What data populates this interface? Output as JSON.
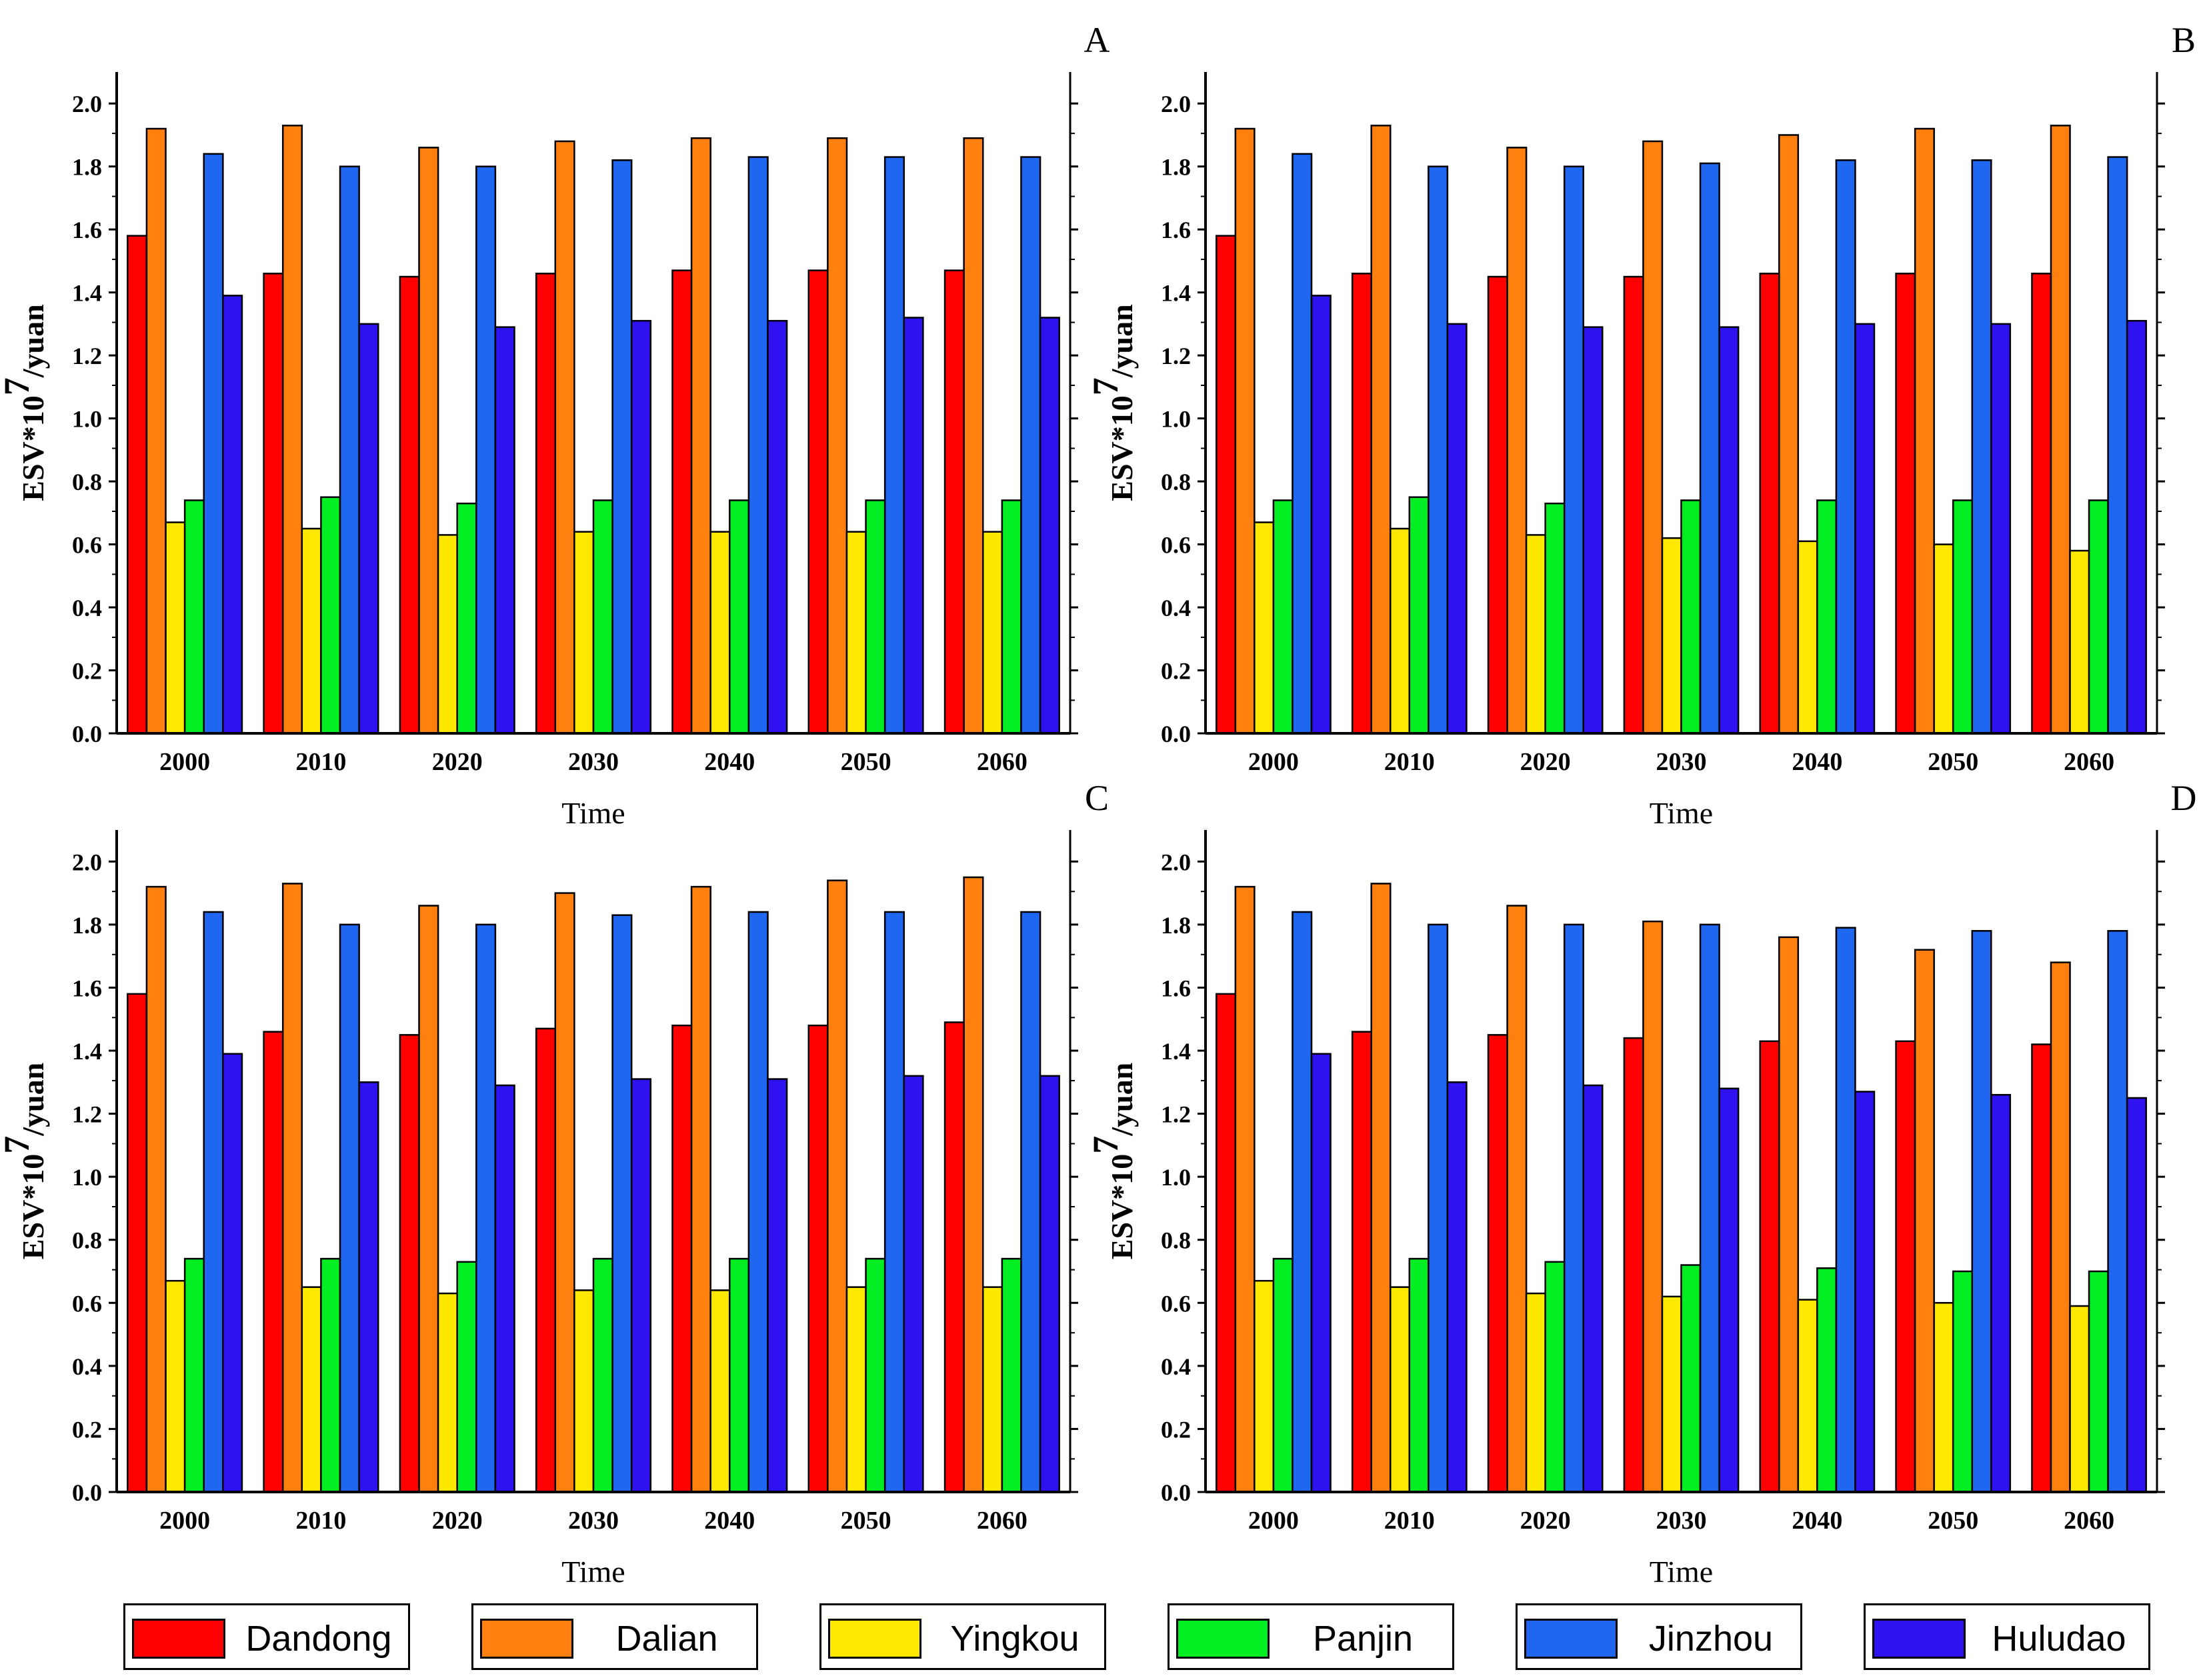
{
  "colors": {
    "Dandong": "#FF0000",
    "Dalian": "#FF7F0F",
    "Yingkou": "#FFE800",
    "Panjin": "#00EE22",
    "Jinzhou": "#1F66F0",
    "Huludao": "#2E12F0"
  },
  "legend": {
    "items": [
      {
        "label": "Dandong",
        "color_key": "Dandong"
      },
      {
        "label": "Dalian",
        "color_key": "Dalian"
      },
      {
        "label": "Yingkou",
        "color_key": "Yingkou"
      },
      {
        "label": "Panjin",
        "color_key": "Panjin"
      },
      {
        "label": "Jinzhou",
        "color_key": "Jinzhou"
      },
      {
        "label": "Huludao",
        "color_key": "Huludao"
      }
    ]
  },
  "chart_data": [
    {
      "type": "bar",
      "panel_label": "A",
      "xlabel": "Time",
      "ylabel_base": "ESV*10",
      "ylabel_exp": "7",
      "ylabel_unit": "/yuan",
      "ylim": [
        0,
        2.1
      ],
      "yticks": [
        "0.0",
        "0.2",
        "0.4",
        "0.6",
        "0.8",
        "1.0",
        "1.2",
        "1.4",
        "1.6",
        "1.8",
        "2.0"
      ],
      "categories": [
        "2000",
        "2010",
        "2020",
        "2030",
        "2040",
        "2050",
        "2060"
      ],
      "series": [
        {
          "name": "Dandong",
          "values": [
            1.58,
            1.46,
            1.45,
            1.46,
            1.47,
            1.47,
            1.47
          ]
        },
        {
          "name": "Dalian",
          "values": [
            1.92,
            1.93,
            1.86,
            1.88,
            1.89,
            1.89,
            1.89
          ]
        },
        {
          "name": "Yingkou",
          "values": [
            0.67,
            0.65,
            0.63,
            0.64,
            0.64,
            0.64,
            0.64
          ]
        },
        {
          "name": "Panjin",
          "values": [
            0.74,
            0.75,
            0.73,
            0.74,
            0.74,
            0.74,
            0.74
          ]
        },
        {
          "name": "Jinzhou",
          "values": [
            1.84,
            1.8,
            1.8,
            1.82,
            1.83,
            1.83,
            1.83
          ]
        },
        {
          "name": "Huludao",
          "values": [
            1.39,
            1.3,
            1.29,
            1.31,
            1.31,
            1.32,
            1.32
          ]
        }
      ]
    },
    {
      "type": "bar",
      "panel_label": "B",
      "xlabel": "Time",
      "ylabel_base": "ESV*10",
      "ylabel_exp": "7",
      "ylabel_unit": "/yuan",
      "ylim": [
        0,
        2.1
      ],
      "yticks": [
        "0.0",
        "0.2",
        "0.4",
        "0.6",
        "0.8",
        "1.0",
        "1.2",
        "1.4",
        "1.6",
        "1.8",
        "2.0"
      ],
      "categories": [
        "2000",
        "2010",
        "2020",
        "2030",
        "2040",
        "2050",
        "2060"
      ],
      "series": [
        {
          "name": "Dandong",
          "values": [
            1.58,
            1.46,
            1.45,
            1.45,
            1.46,
            1.46,
            1.46
          ]
        },
        {
          "name": "Dalian",
          "values": [
            1.92,
            1.93,
            1.86,
            1.88,
            1.9,
            1.92,
            1.93
          ]
        },
        {
          "name": "Yingkou",
          "values": [
            0.67,
            0.65,
            0.63,
            0.62,
            0.61,
            0.6,
            0.58
          ]
        },
        {
          "name": "Panjin",
          "values": [
            0.74,
            0.75,
            0.73,
            0.74,
            0.74,
            0.74,
            0.74
          ]
        },
        {
          "name": "Jinzhou",
          "values": [
            1.84,
            1.8,
            1.8,
            1.81,
            1.82,
            1.82,
            1.83
          ]
        },
        {
          "name": "Huludao",
          "values": [
            1.39,
            1.3,
            1.29,
            1.29,
            1.3,
            1.3,
            1.31
          ]
        }
      ]
    },
    {
      "type": "bar",
      "panel_label": "C",
      "xlabel": "Time",
      "ylabel_base": "ESV*10",
      "ylabel_exp": "7",
      "ylabel_unit": "/yuan",
      "ylim": [
        0,
        2.1
      ],
      "yticks": [
        "0.0",
        "0.2",
        "0.4",
        "0.6",
        "0.8",
        "1.0",
        "1.2",
        "1.4",
        "1.6",
        "1.8",
        "2.0"
      ],
      "categories": [
        "2000",
        "2010",
        "2020",
        "2030",
        "2040",
        "2050",
        "2060"
      ],
      "series": [
        {
          "name": "Dandong",
          "values": [
            1.58,
            1.46,
            1.45,
            1.47,
            1.48,
            1.48,
            1.49
          ]
        },
        {
          "name": "Dalian",
          "values": [
            1.92,
            1.93,
            1.86,
            1.9,
            1.92,
            1.94,
            1.95
          ]
        },
        {
          "name": "Yingkou",
          "values": [
            0.67,
            0.65,
            0.63,
            0.64,
            0.64,
            0.65,
            0.65
          ]
        },
        {
          "name": "Panjin",
          "values": [
            0.74,
            0.74,
            0.73,
            0.74,
            0.74,
            0.74,
            0.74
          ]
        },
        {
          "name": "Jinzhou",
          "values": [
            1.84,
            1.8,
            1.8,
            1.83,
            1.84,
            1.84,
            1.84
          ]
        },
        {
          "name": "Huludao",
          "values": [
            1.39,
            1.3,
            1.29,
            1.31,
            1.31,
            1.32,
            1.32
          ]
        }
      ]
    },
    {
      "type": "bar",
      "panel_label": "D",
      "xlabel": "Time",
      "ylabel_base": "ESV*10",
      "ylabel_exp": "7",
      "ylabel_unit": "/yuan",
      "ylim": [
        0,
        2.1
      ],
      "yticks": [
        "0.0",
        "0.2",
        "0.4",
        "0.6",
        "0.8",
        "1.0",
        "1.2",
        "1.4",
        "1.6",
        "1.8",
        "2.0"
      ],
      "categories": [
        "2000",
        "2010",
        "2020",
        "2030",
        "2040",
        "2050",
        "2060"
      ],
      "series": [
        {
          "name": "Dandong",
          "values": [
            1.58,
            1.46,
            1.45,
            1.44,
            1.43,
            1.43,
            1.42
          ]
        },
        {
          "name": "Dalian",
          "values": [
            1.92,
            1.93,
            1.86,
            1.81,
            1.76,
            1.72,
            1.68
          ]
        },
        {
          "name": "Yingkou",
          "values": [
            0.67,
            0.65,
            0.63,
            0.62,
            0.61,
            0.6,
            0.59
          ]
        },
        {
          "name": "Panjin",
          "values": [
            0.74,
            0.74,
            0.73,
            0.72,
            0.71,
            0.7,
            0.7
          ]
        },
        {
          "name": "Jinzhou",
          "values": [
            1.84,
            1.8,
            1.8,
            1.8,
            1.79,
            1.78,
            1.78
          ]
        },
        {
          "name": "Huludao",
          "values": [
            1.39,
            1.3,
            1.29,
            1.28,
            1.27,
            1.26,
            1.25
          ]
        }
      ]
    }
  ]
}
